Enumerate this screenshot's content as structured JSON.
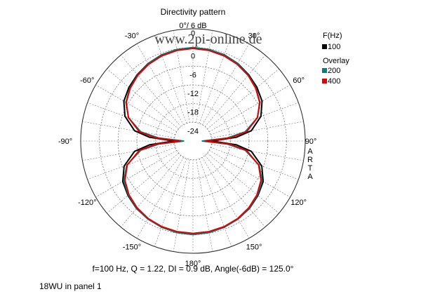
{
  "chart_data": {
    "type": "polar",
    "title": "Directivity pattern",
    "reference_label": "0°/ 6 dB",
    "watermark": "www.2pi-online.de",
    "radial_ticks": [
      "0",
      "-6",
      "-12",
      "-18",
      "-24"
    ],
    "radial_range_db": [
      -30,
      6
    ],
    "angle_labels": [
      {
        "angle": 0,
        "text": "0"
      },
      {
        "angle": -30,
        "text": "-30°"
      },
      {
        "angle": 30,
        "text": "30°"
      },
      {
        "angle": -60,
        "text": "-60°"
      },
      {
        "angle": 60,
        "text": "60°"
      },
      {
        "angle": -90,
        "text": "-90°"
      },
      {
        "angle": 90,
        "text": "90°"
      },
      {
        "angle": -120,
        "text": "-120°"
      },
      {
        "angle": 120,
        "text": "120°"
      },
      {
        "angle": -150,
        "text": "-150°"
      },
      {
        "angle": 150,
        "text": "150°"
      },
      {
        "angle": 180,
        "text": "180°"
      }
    ],
    "brand_vertical": "ARTA",
    "legend": {
      "title": "F(Hz)",
      "overlay_title": "Overlay",
      "entries": [
        {
          "label": "100",
          "color": "#000000"
        },
        {
          "label": "200",
          "color": "#008080"
        },
        {
          "label": "400",
          "color": "#e00000"
        }
      ]
    },
    "series": [
      {
        "name": "100",
        "color": "#000000",
        "points": [
          [
            0,
            0
          ],
          [
            10,
            -0.2
          ],
          [
            20,
            -0.6
          ],
          [
            30,
            -1.3
          ],
          [
            40,
            -2.2
          ],
          [
            50,
            -3.2
          ],
          [
            60,
            -4.4
          ],
          [
            70,
            -6.8
          ],
          [
            80,
            -11
          ],
          [
            85,
            -16
          ],
          [
            90,
            -24
          ],
          [
            95,
            -16
          ],
          [
            100,
            -11
          ],
          [
            110,
            -6.5
          ],
          [
            120,
            -4.0
          ],
          [
            130,
            -2.8
          ],
          [
            140,
            -1.8
          ],
          [
            150,
            -1.1
          ],
          [
            160,
            -0.6
          ],
          [
            170,
            -0.2
          ],
          [
            180,
            0
          ],
          [
            190,
            -0.2
          ],
          [
            200,
            -0.6
          ],
          [
            210,
            -1.1
          ],
          [
            220,
            -1.8
          ],
          [
            230,
            -2.8
          ],
          [
            240,
            -4.0
          ],
          [
            250,
            -6.5
          ],
          [
            260,
            -11
          ],
          [
            265,
            -16
          ],
          [
            270,
            -24
          ],
          [
            275,
            -16
          ],
          [
            280,
            -11
          ],
          [
            290,
            -6.8
          ],
          [
            300,
            -4.4
          ],
          [
            310,
            -3.2
          ],
          [
            320,
            -2.2
          ],
          [
            330,
            -1.3
          ],
          [
            340,
            -0.6
          ],
          [
            350,
            -0.2
          ],
          [
            360,
            0
          ]
        ]
      },
      {
        "name": "200",
        "color": "#008080",
        "points": [
          [
            0,
            0
          ],
          [
            10,
            -0.2
          ],
          [
            20,
            -0.7
          ],
          [
            30,
            -1.4
          ],
          [
            40,
            -2.4
          ],
          [
            50,
            -3.6
          ],
          [
            60,
            -5.2
          ],
          [
            70,
            -8.0
          ],
          [
            80,
            -13
          ],
          [
            85,
            -19
          ],
          [
            90,
            -27
          ],
          [
            95,
            -19
          ],
          [
            100,
            -13
          ],
          [
            110,
            -7.4
          ],
          [
            120,
            -4.4
          ],
          [
            130,
            -3.0
          ],
          [
            140,
            -1.9
          ],
          [
            150,
            -1.1
          ],
          [
            160,
            -0.6
          ],
          [
            170,
            -0.2
          ],
          [
            180,
            0
          ],
          [
            190,
            -0.2
          ],
          [
            200,
            -0.6
          ],
          [
            210,
            -1.1
          ],
          [
            220,
            -1.9
          ],
          [
            230,
            -3.0
          ],
          [
            240,
            -4.4
          ],
          [
            250,
            -7.4
          ],
          [
            260,
            -13
          ],
          [
            265,
            -19
          ],
          [
            270,
            -27
          ],
          [
            275,
            -19
          ],
          [
            280,
            -13
          ],
          [
            290,
            -8.0
          ],
          [
            300,
            -5.2
          ],
          [
            310,
            -3.6
          ],
          [
            320,
            -2.4
          ],
          [
            330,
            -1.4
          ],
          [
            340,
            -0.7
          ],
          [
            350,
            -0.2
          ],
          [
            360,
            0
          ]
        ]
      },
      {
        "name": "400",
        "color": "#e00000",
        "points": [
          [
            0,
            -0.3
          ],
          [
            10,
            -0.5
          ],
          [
            20,
            -0.9
          ],
          [
            30,
            -1.6
          ],
          [
            40,
            -2.5
          ],
          [
            50,
            -3.7
          ],
          [
            60,
            -5.3
          ],
          [
            70,
            -8.0
          ],
          [
            80,
            -12.5
          ],
          [
            85,
            -18
          ],
          [
            90,
            -26
          ],
          [
            95,
            -18
          ],
          [
            100,
            -12.5
          ],
          [
            110,
            -7.6
          ],
          [
            120,
            -4.8
          ],
          [
            130,
            -3.2
          ],
          [
            140,
            -2.1
          ],
          [
            150,
            -1.3
          ],
          [
            160,
            -0.8
          ],
          [
            170,
            -0.5
          ],
          [
            180,
            -0.4
          ],
          [
            190,
            -0.5
          ],
          [
            200,
            -0.8
          ],
          [
            210,
            -1.3
          ],
          [
            220,
            -2.1
          ],
          [
            230,
            -3.2
          ],
          [
            240,
            -4.8
          ],
          [
            250,
            -7.6
          ],
          [
            260,
            -12.5
          ],
          [
            265,
            -18
          ],
          [
            270,
            -26
          ],
          [
            275,
            -18
          ],
          [
            280,
            -12.5
          ],
          [
            290,
            -8.0
          ],
          [
            300,
            -5.3
          ],
          [
            310,
            -3.7
          ],
          [
            320,
            -2.5
          ],
          [
            330,
            -1.6
          ],
          [
            340,
            -0.9
          ],
          [
            350,
            -0.5
          ],
          [
            360,
            -0.3
          ]
        ]
      }
    ],
    "footer": "f=100 Hz,  Q =  1.22,  DI =    0.9 dB, Angle(-6dB) = 125.0°",
    "caption": "18WU in panel 1"
  }
}
